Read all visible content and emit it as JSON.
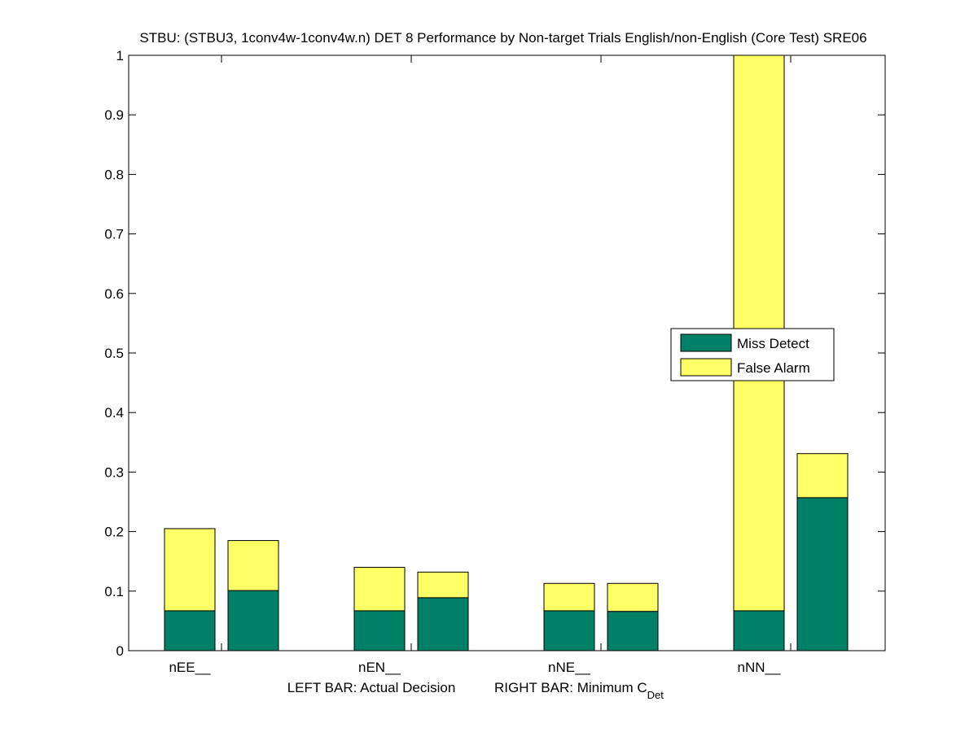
{
  "chart_data": {
    "type": "bar",
    "stacked": true,
    "title": "STBU: (STBU3, 1conv4w-1conv4w.n) DET 8 Performance by Non-target Trials English/non-English (Core Test) SRE06",
    "categories": [
      "nEE__",
      "nEN__",
      "nNE__",
      "nNN__"
    ],
    "bar_groups": [
      "Actual Decision",
      "Minimum C_Det"
    ],
    "series": [
      {
        "name": "Miss Detect",
        "color": "#008066",
        "left_bar": [
          0.067,
          0.067,
          0.067,
          0.067
        ],
        "right_bar": [
          0.101,
          0.089,
          0.066,
          0.257
        ]
      },
      {
        "name": "False Alarm",
        "color": "#ffff66",
        "left_bar": [
          0.138,
          0.073,
          0.046,
          0.933
        ],
        "right_bar": [
          0.084,
          0.043,
          0.047,
          0.074
        ]
      }
    ],
    "totals": {
      "left_bar": [
        0.205,
        0.14,
        0.113,
        1.0
      ],
      "right_bar": [
        0.185,
        0.132,
        0.113,
        0.331
      ]
    },
    "ylim": [
      0,
      1
    ],
    "yticks": [
      "0",
      "0.1",
      "0.2",
      "0.3",
      "0.4",
      "0.5",
      "0.6",
      "0.7",
      "0.8",
      "0.9",
      "1"
    ],
    "xlabel_left": "LEFT BAR: Actual Decision",
    "xlabel_right_main": "RIGHT BAR: Minimum C",
    "xlabel_right_sub": "Det",
    "legend": {
      "position": "right-center",
      "entries": [
        "Miss Detect",
        "False Alarm"
      ]
    },
    "grid": false
  }
}
